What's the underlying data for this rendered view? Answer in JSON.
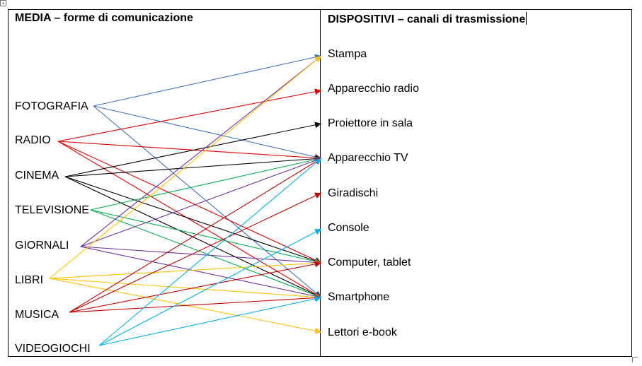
{
  "headers": {
    "media": "MEDIA – forme di comunicazione",
    "devices": "DISPOSITIVI – canali di trasmissione"
  },
  "media": [
    {
      "id": "fotografia",
      "label": "FOTOGRAFIA"
    },
    {
      "id": "radio",
      "label": "RADIO"
    },
    {
      "id": "cinema",
      "label": "CINEMA"
    },
    {
      "id": "televisione",
      "label": "TELEVISIONE"
    },
    {
      "id": "giornali",
      "label": "GIORNALI"
    },
    {
      "id": "libri",
      "label": "LIBRI"
    },
    {
      "id": "musica",
      "label": "MUSICA"
    },
    {
      "id": "videogiochi",
      "label": "VIDEOGIOCHI"
    }
  ],
  "devices": [
    {
      "id": "stampa",
      "label": "Stampa"
    },
    {
      "id": "radio_set",
      "label": "Apparecchio radio"
    },
    {
      "id": "proiettore",
      "label": "Proiettore in sala"
    },
    {
      "id": "tv",
      "label": "Apparecchio TV"
    },
    {
      "id": "giradischi",
      "label": "Giradischi"
    },
    {
      "id": "console",
      "label": "Console"
    },
    {
      "id": "computer",
      "label": "Computer, tablet"
    },
    {
      "id": "smartphone",
      "label": "Smartphone"
    },
    {
      "id": "ebook",
      "label": "Lettori e-book"
    }
  ],
  "colors": {
    "fotografia": "#4472C4",
    "radio": "#E00000",
    "cinema": "#000000",
    "televisione": "#00B050",
    "giornali": "#7030A0",
    "libri": "#FFC000",
    "musica": "#C00000",
    "videogiochi": "#00B0F0"
  },
  "connections": [
    {
      "from": "fotografia",
      "to": "stampa"
    },
    {
      "from": "fotografia",
      "to": "tv"
    },
    {
      "from": "fotografia",
      "to": "smartphone"
    },
    {
      "from": "radio",
      "to": "radio_set"
    },
    {
      "from": "radio",
      "to": "tv"
    },
    {
      "from": "radio",
      "to": "computer"
    },
    {
      "from": "radio",
      "to": "smartphone"
    },
    {
      "from": "cinema",
      "to": "proiettore"
    },
    {
      "from": "cinema",
      "to": "tv"
    },
    {
      "from": "cinema",
      "to": "computer"
    },
    {
      "from": "cinema",
      "to": "smartphone"
    },
    {
      "from": "televisione",
      "to": "tv"
    },
    {
      "from": "televisione",
      "to": "computer"
    },
    {
      "from": "televisione",
      "to": "smartphone"
    },
    {
      "from": "giornali",
      "to": "stampa"
    },
    {
      "from": "giornali",
      "to": "tv"
    },
    {
      "from": "giornali",
      "to": "computer"
    },
    {
      "from": "giornali",
      "to": "smartphone"
    },
    {
      "from": "libri",
      "to": "stampa"
    },
    {
      "from": "libri",
      "to": "computer"
    },
    {
      "from": "libri",
      "to": "smartphone"
    },
    {
      "from": "libri",
      "to": "ebook"
    },
    {
      "from": "musica",
      "to": "tv"
    },
    {
      "from": "musica",
      "to": "giradischi"
    },
    {
      "from": "musica",
      "to": "computer"
    },
    {
      "from": "musica",
      "to": "smartphone"
    },
    {
      "from": "videogiochi",
      "to": "tv"
    },
    {
      "from": "videogiochi",
      "to": "console"
    },
    {
      "from": "videogiochi",
      "to": "smartphone"
    }
  ]
}
